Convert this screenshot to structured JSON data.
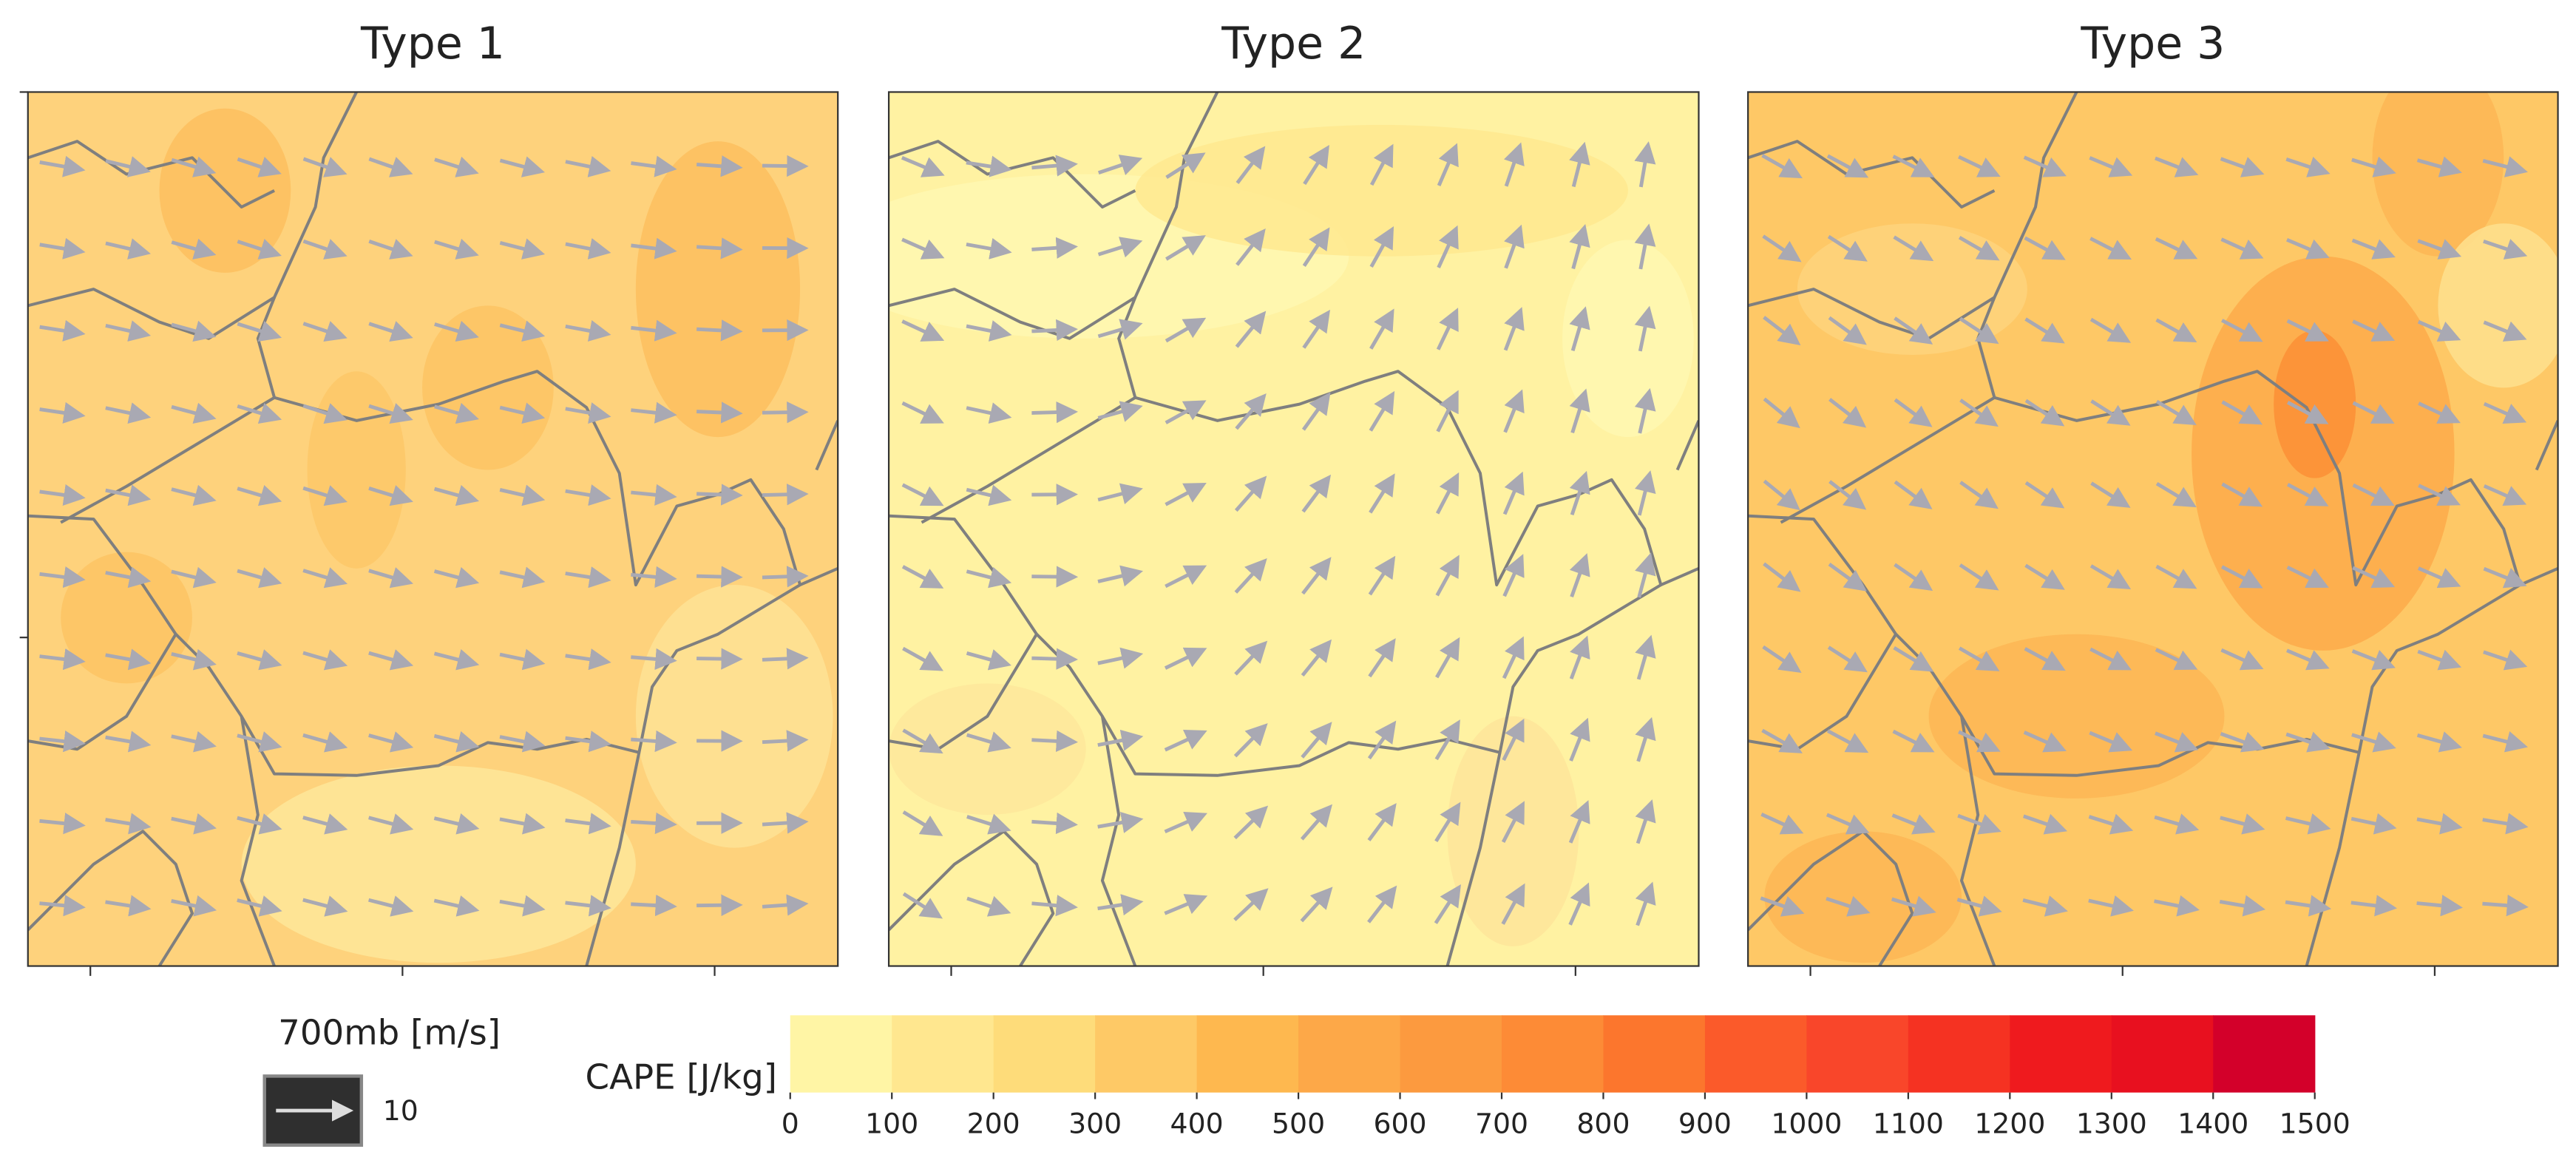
{
  "panels": [
    {
      "title": "Type 1"
    },
    {
      "title": "Type 2"
    },
    {
      "title": "Type 3"
    }
  ],
  "colorbar": {
    "label": "CAPE [J/kg]",
    "ticks": [
      0,
      100,
      200,
      300,
      400,
      500,
      600,
      700,
      800,
      900,
      1000,
      1100,
      1200,
      1300,
      1400,
      1500
    ],
    "colors": [
      "#fff5a5",
      "#ffe78f",
      "#fedc7a",
      "#fec966",
      "#feb84f",
      "#fda848",
      "#fc9a3f",
      "#fd8b36",
      "#fc762d",
      "#fb5a2a",
      "#f9462a",
      "#f53222",
      "#ef1a1e",
      "#e8101f",
      "#d3002a"
    ]
  },
  "quiver_key": {
    "label": "700mb [m/s]",
    "value": 10
  }
}
